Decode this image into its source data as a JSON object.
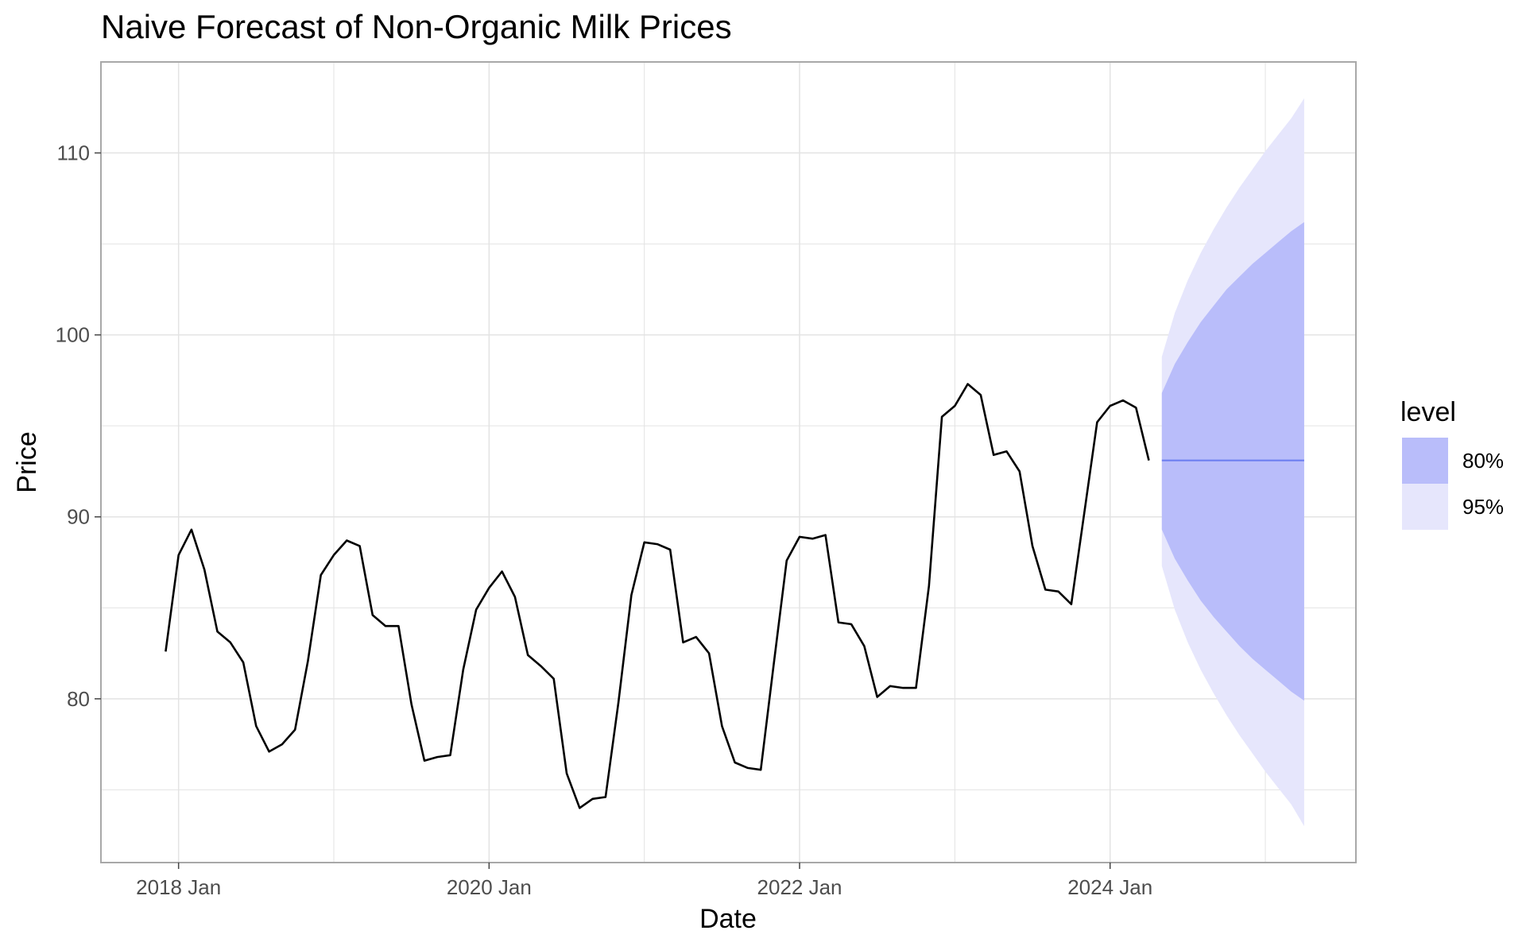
{
  "chart_data": {
    "type": "line",
    "title": "Naive Forecast of Non-Organic Milk Prices",
    "xlabel": "Date",
    "ylabel": "Price",
    "x_ticks": [
      "2018 Jan",
      "2020 Jan",
      "2022 Jan",
      "2024 Jan"
    ],
    "y_ticks": [
      80,
      90,
      100,
      110
    ],
    "ylim": [
      71,
      115
    ],
    "xlim": [
      "2017-07",
      "2025-08"
    ],
    "grid": true,
    "legend": {
      "title": "level",
      "position": "right",
      "entries": [
        {
          "label": "80%",
          "color": "#b9bdfa"
        },
        {
          "label": "95%",
          "color": "#e6e6fc"
        }
      ]
    },
    "colors": {
      "observed_line": "#000000",
      "forecast_line": "#6d7ff0",
      "band80": "#b9bdfa",
      "band95": "#e6e6fc",
      "grid": "#e3e3e3",
      "panel_border": "#a8a8a8"
    },
    "series": [
      {
        "values": [
          [
            "2017-12",
            82.6
          ],
          [
            "2018-01",
            87.9
          ],
          [
            "2018-02",
            89.3
          ],
          [
            "2018-03",
            87.1
          ],
          [
            "2018-04",
            83.7
          ],
          [
            "2018-05",
            83.1
          ],
          [
            "2018-06",
            82.0
          ],
          [
            "2018-07",
            78.5
          ],
          [
            "2018-08",
            77.1
          ],
          [
            "2018-09",
            77.5
          ],
          [
            "2018-10",
            78.3
          ],
          [
            "2018-11",
            82.1
          ],
          [
            "2018-12",
            86.8
          ],
          [
            "2019-01",
            87.9
          ],
          [
            "2019-02",
            88.7
          ],
          [
            "2019-03",
            88.4
          ],
          [
            "2019-04",
            84.6
          ],
          [
            "2019-05",
            84.0
          ],
          [
            "2019-06",
            84.0
          ],
          [
            "2019-07",
            79.7
          ],
          [
            "2019-08",
            76.6
          ],
          [
            "2019-09",
            76.8
          ],
          [
            "2019-10",
            76.9
          ],
          [
            "2019-11",
            81.6
          ],
          [
            "2019-12",
            84.9
          ],
          [
            "2020-01",
            86.1
          ],
          [
            "2020-02",
            87.0
          ],
          [
            "2020-03",
            85.6
          ],
          [
            "2020-04",
            82.4
          ],
          [
            "2020-05",
            81.8
          ],
          [
            "2020-06",
            81.1
          ],
          [
            "2020-07",
            75.9
          ],
          [
            "2020-08",
            74.0
          ],
          [
            "2020-09",
            74.5
          ],
          [
            "2020-10",
            74.6
          ],
          [
            "2020-11",
            79.8
          ],
          [
            "2020-12",
            85.7
          ],
          [
            "2021-01",
            88.6
          ],
          [
            "2021-02",
            88.5
          ],
          [
            "2021-03",
            88.2
          ],
          [
            "2021-04",
            83.1
          ],
          [
            "2021-05",
            83.4
          ],
          [
            "2021-06",
            82.5
          ],
          [
            "2021-07",
            78.5
          ],
          [
            "2021-08",
            76.5
          ],
          [
            "2021-09",
            76.2
          ],
          [
            "2021-10",
            76.1
          ],
          [
            "2021-11",
            81.9
          ],
          [
            "2021-12",
            87.6
          ],
          [
            "2022-01",
            88.9
          ],
          [
            "2022-02",
            88.8
          ],
          [
            "2022-03",
            89.0
          ],
          [
            "2022-04",
            84.2
          ],
          [
            "2022-05",
            84.1
          ],
          [
            "2022-06",
            82.9
          ],
          [
            "2022-07",
            80.1
          ],
          [
            "2022-08",
            80.7
          ],
          [
            "2022-09",
            80.6
          ],
          [
            "2022-10",
            80.6
          ],
          [
            "2022-11",
            86.2
          ],
          [
            "2022-12",
            95.5
          ],
          [
            "2023-01",
            96.1
          ],
          [
            "2023-02",
            97.3
          ],
          [
            "2023-03",
            96.7
          ],
          [
            "2023-04",
            93.4
          ],
          [
            "2023-05",
            93.6
          ],
          [
            "2023-06",
            92.5
          ],
          [
            "2023-07",
            88.4
          ],
          [
            "2023-08",
            86.0
          ],
          [
            "2023-09",
            85.9
          ],
          [
            "2023-10",
            85.2
          ],
          [
            "2023-11",
            90.2
          ],
          [
            "2023-12",
            95.2
          ],
          [
            "2024-01",
            96.1
          ],
          [
            "2024-02",
            96.4
          ],
          [
            "2024-03",
            96.0
          ],
          [
            "2024-04",
            93.1
          ]
        ]
      },
      {
        "type": "forecast",
        "values": [
          [
            "2024-05",
            93.1
          ],
          [
            "2024-06",
            93.1
          ],
          [
            "2024-07",
            93.1
          ],
          [
            "2024-08",
            93.1
          ],
          [
            "2024-09",
            93.1
          ],
          [
            "2024-10",
            93.1
          ],
          [
            "2024-11",
            93.1
          ],
          [
            "2024-12",
            93.1
          ],
          [
            "2025-01",
            93.1
          ],
          [
            "2025-02",
            93.1
          ],
          [
            "2025-03",
            93.1
          ],
          [
            "2025-04",
            93.1
          ]
        ],
        "interval_80": [
          [
            89.3,
            96.8
          ],
          [
            87.7,
            98.4
          ],
          [
            86.5,
            99.6
          ],
          [
            85.4,
            100.7
          ],
          [
            84.5,
            101.6
          ],
          [
            83.7,
            102.5
          ],
          [
            82.9,
            103.2
          ],
          [
            82.2,
            103.9
          ],
          [
            81.6,
            104.5
          ],
          [
            81.0,
            105.1
          ],
          [
            80.4,
            105.7
          ],
          [
            79.9,
            106.2
          ]
        ],
        "interval_95": [
          [
            87.3,
            98.8
          ],
          [
            84.9,
            101.2
          ],
          [
            83.1,
            103.0
          ],
          [
            81.6,
            104.5
          ],
          [
            80.3,
            105.8
          ],
          [
            79.1,
            107.0
          ],
          [
            78.0,
            108.1
          ],
          [
            77.0,
            109.1
          ],
          [
            76.0,
            110.1
          ],
          [
            75.1,
            111.0
          ],
          [
            74.2,
            111.9
          ],
          [
            73.0,
            113.0
          ]
        ]
      }
    ]
  }
}
